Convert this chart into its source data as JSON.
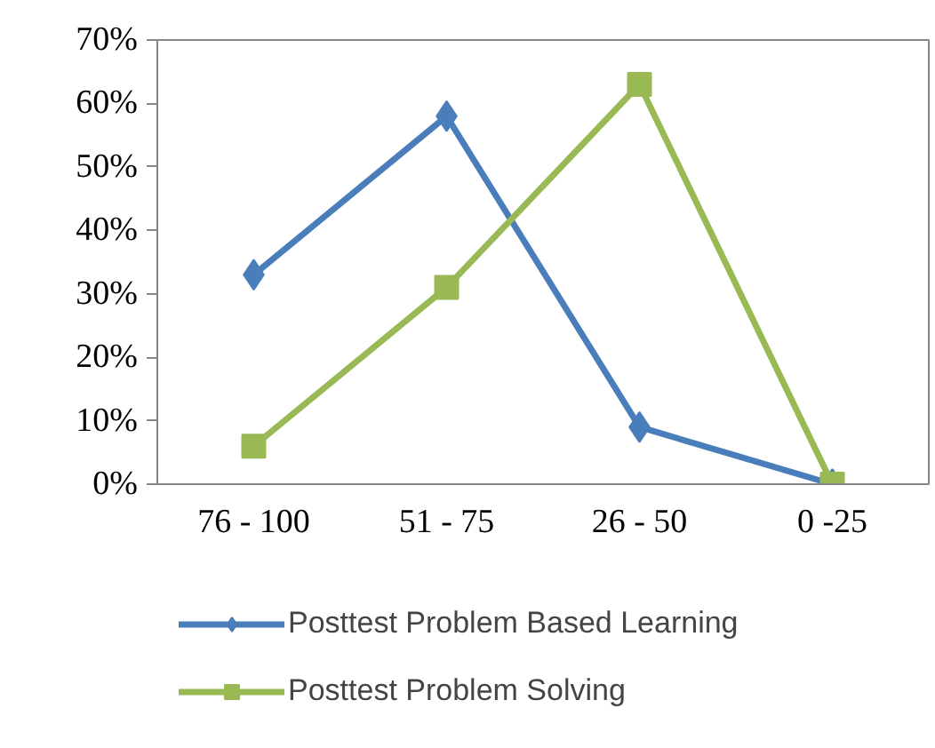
{
  "chart_data": {
    "type": "line",
    "categories": [
      "76 - 100",
      "51 - 75",
      "26 - 50",
      "0 -25"
    ],
    "series": [
      {
        "name": "Posttest Problem Based Learning",
        "color": "#4a7ebb",
        "values": [
          33,
          58,
          9,
          0
        ],
        "marker": "diamond"
      },
      {
        "name": "Posttest Problem Solving",
        "color": "#98b954",
        "values": [
          6,
          31,
          63,
          0
        ],
        "marker": "square"
      }
    ],
    "ylim": [
      0,
      70
    ],
    "yticks": [
      {
        "value": 0,
        "label": "0%"
      },
      {
        "value": 10,
        "label": "10%"
      },
      {
        "value": 20,
        "label": "20%"
      },
      {
        "value": 30,
        "label": "30%"
      },
      {
        "value": 40,
        "label": "40%"
      },
      {
        "value": 50,
        "label": "50%"
      },
      {
        "value": 60,
        "label": "60%"
      },
      {
        "value": 70,
        "label": "70%"
      }
    ],
    "grid": false,
    "legend": "bottom",
    "line_style": "solid"
  }
}
